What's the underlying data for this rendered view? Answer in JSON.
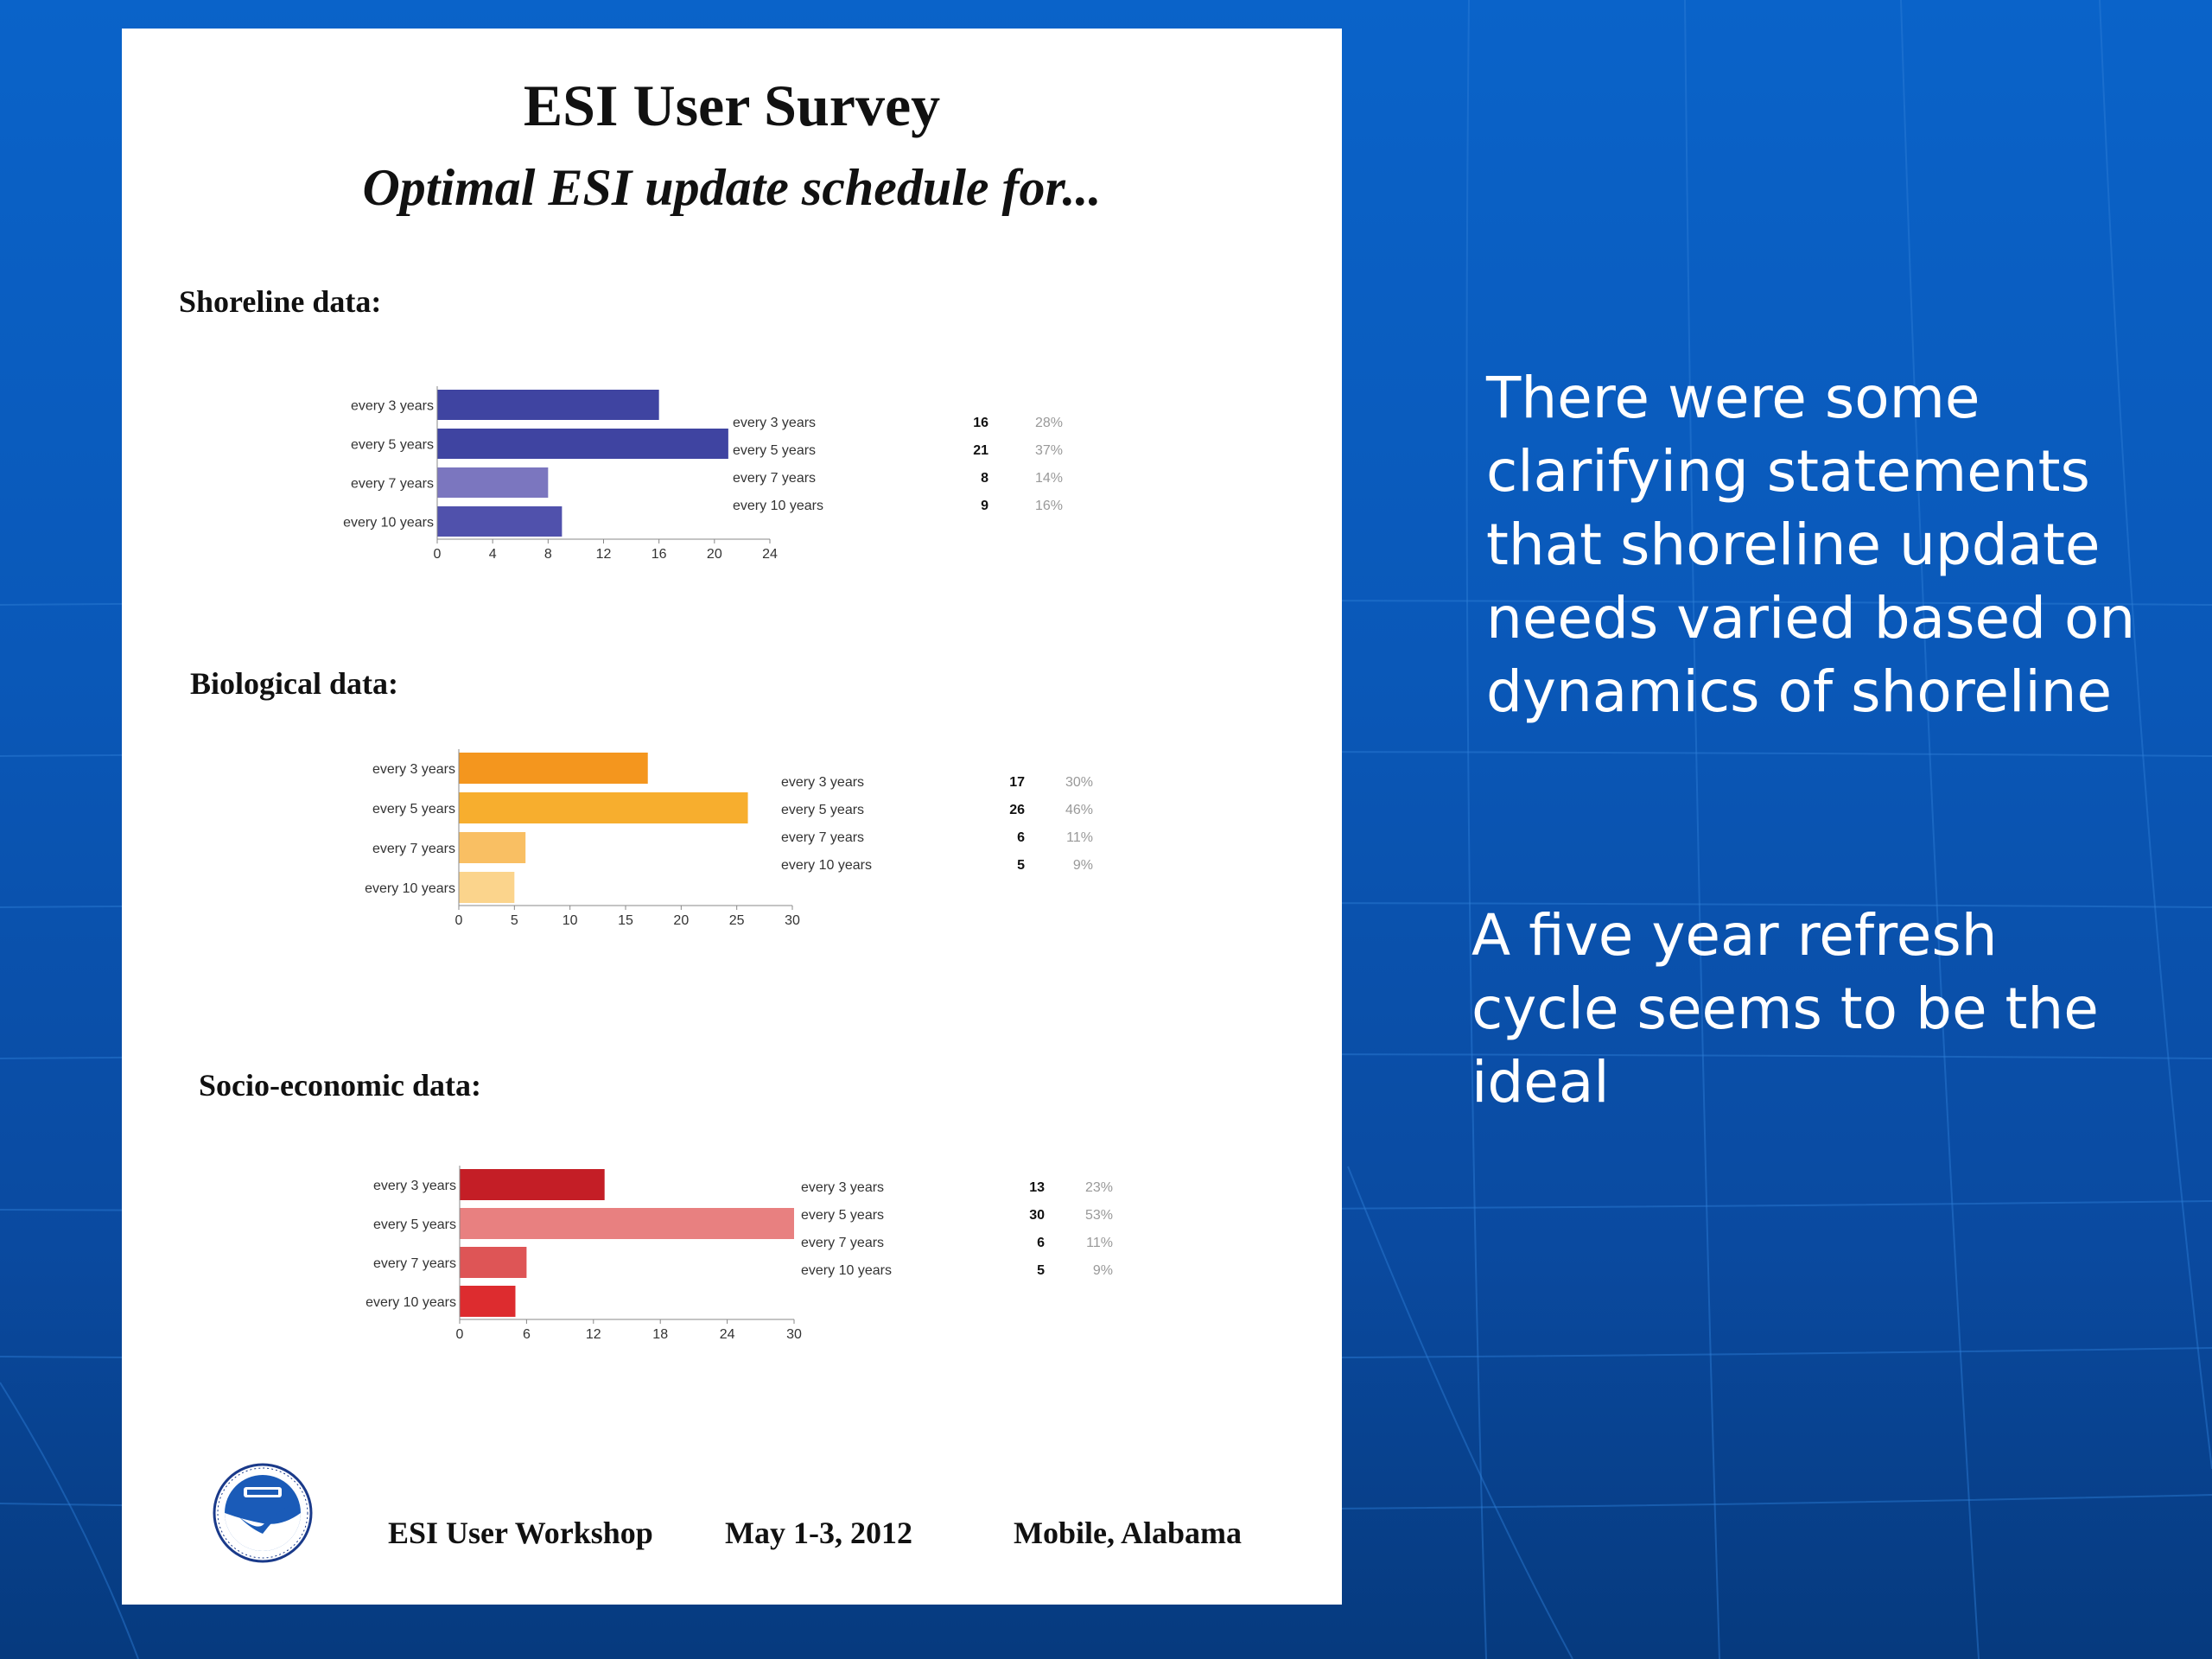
{
  "document": {
    "title": "ESI User Survey",
    "subtitle": "Optimal ESI update schedule for...",
    "footer": {
      "event": "ESI User Workshop",
      "date": "May 1-3, 2012",
      "location": "Mobile, Alabama"
    }
  },
  "side_notes": [
    {
      "lines": [
        "There were some",
        "clarifying statements",
        "that shoreline update",
        "needs varied based on",
        "dynamics of shoreline"
      ]
    },
    {
      "lines": [
        "A five year refresh",
        "cycle seems to be the",
        "ideal"
      ]
    }
  ],
  "colors": {
    "background": "#0a5ec4",
    "note_text": "#ffffff"
  },
  "chart_data": [
    {
      "type": "bar",
      "title": "Shoreline data:",
      "orientation": "horizontal",
      "categories": [
        "every 3 years",
        "every 5 years",
        "every 7 years",
        "every 10 years"
      ],
      "values": [
        16,
        21,
        8,
        9
      ],
      "percents": [
        "28%",
        "37%",
        "14%",
        "16%"
      ],
      "xlim": [
        0,
        24
      ],
      "ticks": [
        0,
        4,
        8,
        12,
        16,
        20,
        24
      ],
      "colors": [
        "#3f44a1",
        "#3f44a1",
        "#7b76bf",
        "#5051ac"
      ]
    },
    {
      "type": "bar",
      "title": "Biological data:",
      "orientation": "horizontal",
      "categories": [
        "every 3 years",
        "every 5 years",
        "every 7 years",
        "every 10 years"
      ],
      "values": [
        17,
        26,
        6,
        5
      ],
      "percents": [
        "30%",
        "46%",
        "11%",
        "9%"
      ],
      "xlim": [
        0,
        30
      ],
      "ticks": [
        0,
        5,
        10,
        15,
        20,
        25,
        30
      ],
      "colors": [
        "#f4961e",
        "#f7ae2e",
        "#f9bf63",
        "#fbd48c"
      ]
    },
    {
      "type": "bar",
      "title": "Socio-economic data:",
      "orientation": "horizontal",
      "categories": [
        "every 3 years",
        "every 5 years",
        "every 7 years",
        "every 10 years"
      ],
      "values": [
        13,
        30,
        6,
        5
      ],
      "percents": [
        "23%",
        "53%",
        "11%",
        "9%"
      ],
      "xlim": [
        0,
        30
      ],
      "ticks": [
        0,
        6,
        12,
        18,
        24,
        30
      ],
      "colors": [
        "#c41e26",
        "#e88080",
        "#de5556",
        "#dd2c2f"
      ]
    }
  ]
}
